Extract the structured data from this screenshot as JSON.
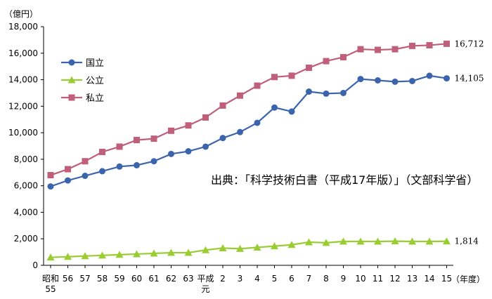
{
  "chart_data": {
    "type": "line",
    "unit_label": "（億円）",
    "xlabel": "（年度）",
    "ylim": [
      0,
      18000
    ],
    "y_ticks": [
      "0",
      "2,000",
      "4,000",
      "6,000",
      "8,000",
      "10,000",
      "12,000",
      "14,000",
      "16,000",
      "18,000"
    ],
    "categories": [
      [
        "昭和",
        "55"
      ],
      [
        "56"
      ],
      [
        "57"
      ],
      [
        "58"
      ],
      [
        "59"
      ],
      [
        "60"
      ],
      [
        "61"
      ],
      [
        "62"
      ],
      [
        "63"
      ],
      [
        "平成",
        "元"
      ],
      [
        "2"
      ],
      [
        "3"
      ],
      [
        "4"
      ],
      [
        "5"
      ],
      [
        "6"
      ],
      [
        "7"
      ],
      [
        "8"
      ],
      [
        "9"
      ],
      [
        "10"
      ],
      [
        "11"
      ],
      [
        "12"
      ],
      [
        "13"
      ],
      [
        "14"
      ],
      [
        "15"
      ]
    ],
    "series": [
      {
        "name": "国立",
        "color": "#3b64ad",
        "marker": "circle",
        "values": [
          5950,
          6400,
          6750,
          7100,
          7450,
          7550,
          7850,
          8400,
          8600,
          8950,
          9600,
          10050,
          10750,
          11900,
          11600,
          13100,
          12950,
          13000,
          14050,
          13950,
          13850,
          13900,
          14300,
          14105
        ],
        "end_label": "14,105"
      },
      {
        "name": "公立",
        "color": "#9acd32",
        "marker": "triangle",
        "values": [
          600,
          650,
          700,
          750,
          800,
          850,
          900,
          950,
          950,
          1150,
          1300,
          1250,
          1350,
          1450,
          1550,
          1750,
          1700,
          1800,
          1800,
          1800,
          1820,
          1800,
          1800,
          1814
        ],
        "end_label": "1,814"
      },
      {
        "name": "私立",
        "color": "#bf5f7a",
        "marker": "square",
        "values": [
          6800,
          7250,
          7850,
          8550,
          8950,
          9450,
          9550,
          10150,
          10550,
          11150,
          12050,
          12800,
          13550,
          14200,
          14300,
          14900,
          15400,
          15700,
          16300,
          16250,
          16300,
          16550,
          16600,
          16712
        ],
        "end_label": "16,712"
      }
    ],
    "legend_position": "top-left",
    "annotation": "出典：「科学技術白書（平成17年版）」（文部科学省）"
  }
}
